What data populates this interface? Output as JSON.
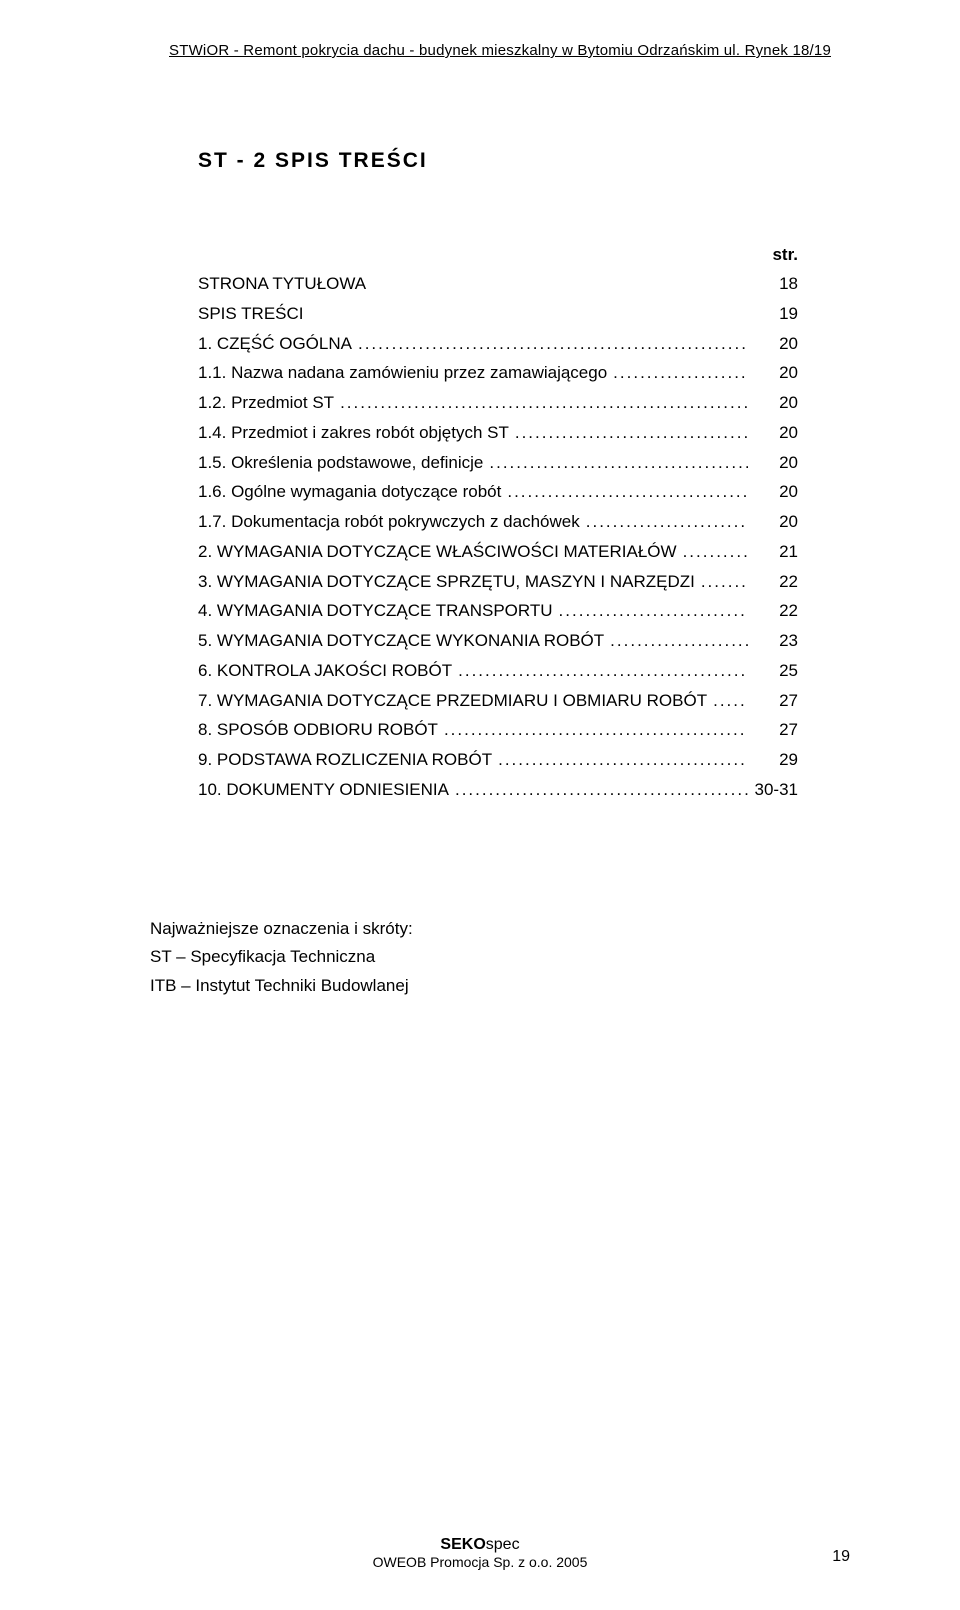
{
  "header": {
    "running": "STWiOR - Remont pokrycia dachu - budynek mieszkalny w Bytomiu Odrzańskim ul. Rynek 18/19"
  },
  "title": "ST - 2      SPIS TREŚCI",
  "toc": {
    "str_label": "str.",
    "lead": [
      {
        "label": "STRONA  TYTUŁOWA",
        "page": "18"
      },
      {
        "label": "SPIS  TREŚCI",
        "page": "19"
      }
    ],
    "items": [
      {
        "label": "1. CZĘŚĆ OGÓLNA",
        "page": "20"
      },
      {
        "label": "1.1. Nazwa nadana zamówieniu przez zamawiającego",
        "page": "20"
      },
      {
        "label": "1.2. Przedmiot ST",
        "page": "20"
      },
      {
        "label": "1.4. Przedmiot i zakres robót objętych ST",
        "page": "20"
      },
      {
        "label": "1.5. Określenia podstawowe, definicje",
        "page": "20"
      },
      {
        "label": "1.6. Ogólne wymagania dotyczące robót",
        "page": "20"
      },
      {
        "label": "1.7. Dokumentacja robót pokrywczych z dachówek",
        "page": "20"
      },
      {
        "label": "2. WYMAGANIA DOTYCZĄCE WŁAŚCIWOŚCI MATERIAŁÓW",
        "page": "21"
      },
      {
        "label": "3. WYMAGANIA DOTYCZĄCE SPRZĘTU, MASZYN I NARZĘDZI",
        "page": "22"
      },
      {
        "label": "4. WYMAGANIA DOTYCZĄCE TRANSPORTU",
        "page": "22"
      },
      {
        "label": "5. WYMAGANIA DOTYCZĄCE WYKONANIA ROBÓT",
        "page": "23"
      },
      {
        "label": "6. KONTROLA JAKOŚCI ROBÓT",
        "page": "25"
      },
      {
        "label": "7. WYMAGANIA DOTYCZĄCE PRZEDMIARU I OBMIARU ROBÓT",
        "page": "27"
      },
      {
        "label": "8. SPOSÓB ODBIORU ROBÓT",
        "page": "27"
      },
      {
        "label": "9. PODSTAWA ROZLICZENIA ROBÓT",
        "page": "29"
      },
      {
        "label": "10. DOKUMENTY ODNIESIENIA",
        "page": "30-31"
      }
    ]
  },
  "abbrev": {
    "heading": "Najważniejsze oznaczenia i skróty:",
    "lines": [
      "ST – Specyfikacja Techniczna",
      "ITB – Instytut Techniki Budowlanej"
    ]
  },
  "footer": {
    "seko_bold": "SEKO",
    "seko_rest": "spec",
    "line2": "OWEOB Promocja Sp. z o.o. 2005",
    "page_number": "19"
  }
}
